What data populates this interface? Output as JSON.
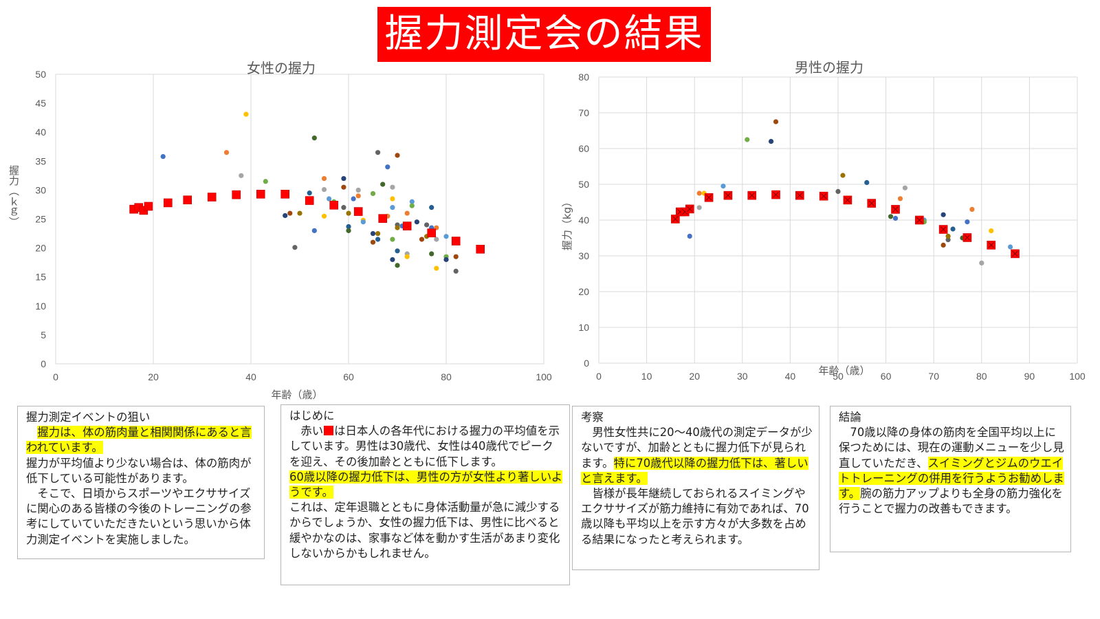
{
  "banner": {
    "title": "握力測定会の結果"
  },
  "colors": {
    "banner_bg": "#ff0000",
    "average": "#ff0000",
    "grid": "#d9d9d9",
    "highlight": "#ffff00",
    "points": [
      "#4472c4",
      "#ed7d31",
      "#a5a5a5",
      "#ffc000",
      "#5b9bd5",
      "#70ad47",
      "#264478",
      "#9e480e",
      "#636363",
      "#997300",
      "#255e91",
      "#43682b"
    ]
  },
  "chart_data": [
    {
      "type": "scatter",
      "title": "女性の握力",
      "xlabel": "年齢（歳）",
      "ylabel": "握力（ｋｇ）",
      "xlim": [
        0,
        100
      ],
      "ylim": [
        0,
        50
      ],
      "xticks": [
        0,
        20,
        40,
        60,
        80,
        100
      ],
      "yticks": [
        0,
        5,
        10,
        15,
        20,
        25,
        30,
        35,
        40,
        45,
        50
      ],
      "grid": "vertical",
      "series": [
        {
          "role": "average",
          "marker": "square",
          "points": [
            [
              16,
              26.7
            ],
            [
              17,
              27
            ],
            [
              18,
              26.5
            ],
            [
              19,
              27.2
            ],
            [
              23,
              27.8
            ],
            [
              27,
              28.3
            ],
            [
              32,
              28.8
            ],
            [
              37,
              29.2
            ],
            [
              42,
              29.3
            ],
            [
              47,
              29.3
            ],
            [
              52,
              28.2
            ],
            [
              57,
              27.4
            ],
            [
              62,
              26.3
            ],
            [
              67,
              25.1
            ],
            [
              72,
              23.8
            ],
            [
              77,
              22.6
            ],
            [
              82,
              21.2
            ],
            [
              87,
              19.8
            ]
          ]
        },
        {
          "role": "individual",
          "marker": "circle",
          "points": [
            [
              22,
              35.8
            ],
            [
              35,
              36.5
            ],
            [
              38,
              32.5
            ],
            [
              39,
              43.1
            ],
            [
              42,
              29
            ],
            [
              43,
              31.5
            ],
            [
              47,
              25.6
            ],
            [
              48,
              26
            ],
            [
              49,
              20.1
            ],
            [
              50,
              26
            ],
            [
              52,
              29.5
            ],
            [
              53,
              39
            ],
            [
              53,
              23
            ],
            [
              55,
              32
            ],
            [
              55,
              30.1
            ],
            [
              55,
              25.5
            ],
            [
              56,
              28.5
            ],
            [
              57,
              28
            ],
            [
              59,
              32
            ],
            [
              59,
              30.5
            ],
            [
              59,
              27
            ],
            [
              60,
              26
            ],
            [
              60,
              23.7
            ],
            [
              60,
              23
            ],
            [
              61,
              28.5
            ],
            [
              62,
              29
            ],
            [
              62,
              30
            ],
            [
              63,
              24.8
            ],
            [
              63,
              24.5
            ],
            [
              65,
              29.4
            ],
            [
              65,
              22.5
            ],
            [
              65,
              21
            ],
            [
              66,
              36.5
            ],
            [
              66,
              22.5
            ],
            [
              66,
              21.5
            ],
            [
              67,
              31
            ],
            [
              68,
              34
            ],
            [
              68,
              25.5
            ],
            [
              69,
              30.5
            ],
            [
              69,
              28.5
            ],
            [
              69,
              27
            ],
            [
              69,
              21.5
            ],
            [
              69,
              18
            ],
            [
              70,
              36
            ],
            [
              70,
              24
            ],
            [
              70,
              23.5
            ],
            [
              70,
              19.5
            ],
            [
              70,
              17
            ],
            [
              71,
              23.8
            ],
            [
              72,
              26
            ],
            [
              72,
              19
            ],
            [
              72,
              18.5
            ],
            [
              73,
              28
            ],
            [
              73,
              27.3
            ],
            [
              74,
              24.5
            ],
            [
              75,
              21.5
            ],
            [
              76,
              24
            ],
            [
              76,
              22
            ],
            [
              77,
              27
            ],
            [
              77,
              19
            ],
            [
              77,
              23.5
            ],
            [
              78,
              23.5
            ],
            [
              78,
              21.5
            ],
            [
              78,
              16.5
            ],
            [
              80,
              22
            ],
            [
              80,
              18.5
            ],
            [
              80,
              18
            ],
            [
              82,
              18.5
            ],
            [
              82,
              16
            ]
          ]
        }
      ]
    },
    {
      "type": "scatter",
      "title": "男性の握力",
      "xlabel": "年齢（歳）",
      "ylabel": "握力（kg）",
      "xlim": [
        0,
        100
      ],
      "ylim": [
        0,
        80
      ],
      "xticks": [
        0,
        10,
        20,
        30,
        40,
        50,
        60,
        70,
        80,
        90,
        100
      ],
      "yticks": [
        0,
        10,
        20,
        30,
        40,
        50,
        60,
        70,
        80
      ],
      "grid": "both",
      "series": [
        {
          "role": "average",
          "marker": "square-x",
          "points": [
            [
              16,
              40.3
            ],
            [
              17,
              42.3
            ],
            [
              18,
              42.3
            ],
            [
              19,
              43.1
            ],
            [
              23,
              46.3
            ],
            [
              27,
              46.9
            ],
            [
              32,
              46.9
            ],
            [
              37,
              47.1
            ],
            [
              42,
              46.9
            ],
            [
              47,
              46.7
            ],
            [
              52,
              45.6
            ],
            [
              57,
              44.7
            ],
            [
              62,
              43
            ],
            [
              67,
              40
            ],
            [
              72,
              37.4
            ],
            [
              77,
              35.1
            ],
            [
              82,
              33
            ],
            [
              87,
              30.6
            ]
          ]
        },
        {
          "role": "individual",
          "marker": "circle",
          "points": [
            [
              19,
              35.5
            ],
            [
              21,
              47.5
            ],
            [
              21,
              43.5
            ],
            [
              22,
              47.5
            ],
            [
              26,
              49.5
            ],
            [
              31,
              62.5
            ],
            [
              36,
              62
            ],
            [
              37,
              67.5
            ],
            [
              50,
              48
            ],
            [
              51,
              52.5
            ],
            [
              56,
              50.5
            ],
            [
              61,
              41
            ],
            [
              62,
              40.5
            ],
            [
              63,
              46
            ],
            [
              64,
              49
            ],
            [
              67,
              40.5
            ],
            [
              68,
              40
            ],
            [
              68,
              39.5
            ],
            [
              72,
              41.5
            ],
            [
              72,
              33
            ],
            [
              73,
              34.5
            ],
            [
              73,
              35.5
            ],
            [
              74,
              37.5
            ],
            [
              76,
              35
            ],
            [
              77,
              39.5
            ],
            [
              78,
              43
            ],
            [
              80,
              28
            ],
            [
              82,
              37
            ],
            [
              86,
              32.5
            ]
          ]
        }
      ]
    }
  ],
  "boxes": {
    "aim": {
      "heading": "握力測定イベントの狙い",
      "hl": "握力は、体の筋肉量と相関関係にあると言われています。",
      "p2": "握力が平均値より少ない場合は、体の筋肉が低下している可能性があります。",
      "p3": "そこで、日頃からスポーツやエクササイズに関心のある皆様の今後のトレーニングの参考にしていていただきたいという思いから体力測定イベントを実施しました。"
    },
    "intro": {
      "heading": "はじめに",
      "pre": "赤い",
      "post": "は日本人の各年代における握力の平均値を示しています。男性は30歳代、女性は40歳代でピークを迎え、その後加齢とともに低下します。",
      "hl": "60歳以降の握力低下は、男性の方が女性より著しいようです。",
      "p3": "これは、定年退職とともに身体活動量が急に減少するからでしょうか、女性の握力低下は、男性に比べると緩やかなのは、家事など体を動かす生活があまり変化しないからかもしれません。"
    },
    "discussion": {
      "heading": "考察",
      "pre": "男性女性共に20～40歳代の測定データが少ないですが、加齢とともに握力低下が見られます。",
      "hl": "特に70歳代以降の握力低下は、著しいと言えます。",
      "p2": "皆様が長年継続しておられるスイミングやエクササイズが筋力維持に有効であれば、70歳以降も平均以上を示す方々が大多数を占める結果になったと考えられます。"
    },
    "conclusion": {
      "heading": "結論",
      "pre": "70歳以降の身体の筋肉を全国平均以上に保つためには、現在の運動メニューを少し見直していただき、",
      "hl": "スイミングとジムのウエイトトレーニングの併用を行うようお勧めします。",
      "post": "腕の筋力アップよりも全身の筋力強化を行うことで握力の改善もできます。"
    }
  }
}
